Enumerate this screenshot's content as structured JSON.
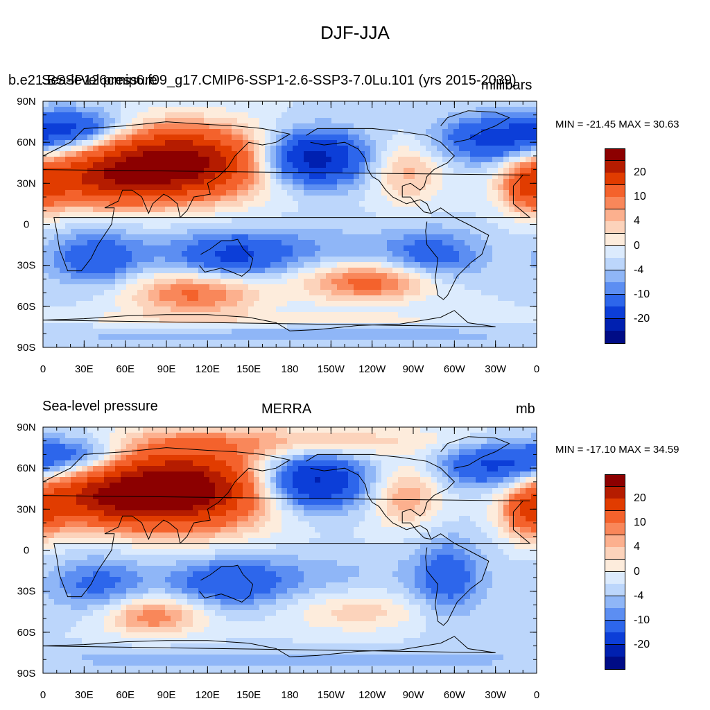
{
  "figure": {
    "title": "DJF-JJA"
  },
  "panels": [
    {
      "left_title": "b.e21.BSSP126cmip6.f09_g17.CMIP6-SSP1-2.6-SSP3-7.0Lu.101 (yrs 2015-2039)",
      "left_title_overlay": "Sea-level pressure",
      "center_title": "",
      "units": "millibars",
      "minmax": "MIN = -21.45 MAX =  30.63"
    },
    {
      "left_title": "Sea-level pressure",
      "center_title": "MERRA",
      "units": "mb",
      "minmax": "MIN = -17.10 MAX =  34.59"
    }
  ],
  "axes": {
    "lat_ticks": [
      "90N",
      "60N",
      "30N",
      "0",
      "30S",
      "60S",
      "90S"
    ],
    "lon_ticks": [
      "0",
      "30E",
      "60E",
      "90E",
      "120E",
      "150E",
      "180",
      "150W",
      "120W",
      "90W",
      "60W",
      "30W",
      "0"
    ]
  },
  "colorbar": {
    "labels": [
      "20",
      "10",
      "4",
      "0",
      "-4",
      "-10",
      "-20"
    ],
    "colors": [
      "#8c0000",
      "#b51c00",
      "#e13c00",
      "#f4622c",
      "#f9875a",
      "#fcb08e",
      "#fcd3bb",
      "#fdecdc",
      "#dcebfd",
      "#bcd6fb",
      "#8fb6f7",
      "#5c8ef2",
      "#2d66eb",
      "#0c3ed8",
      "#0020b0",
      "#000c86"
    ]
  },
  "color_scale": {
    "missing": "#ffffff"
  }
}
